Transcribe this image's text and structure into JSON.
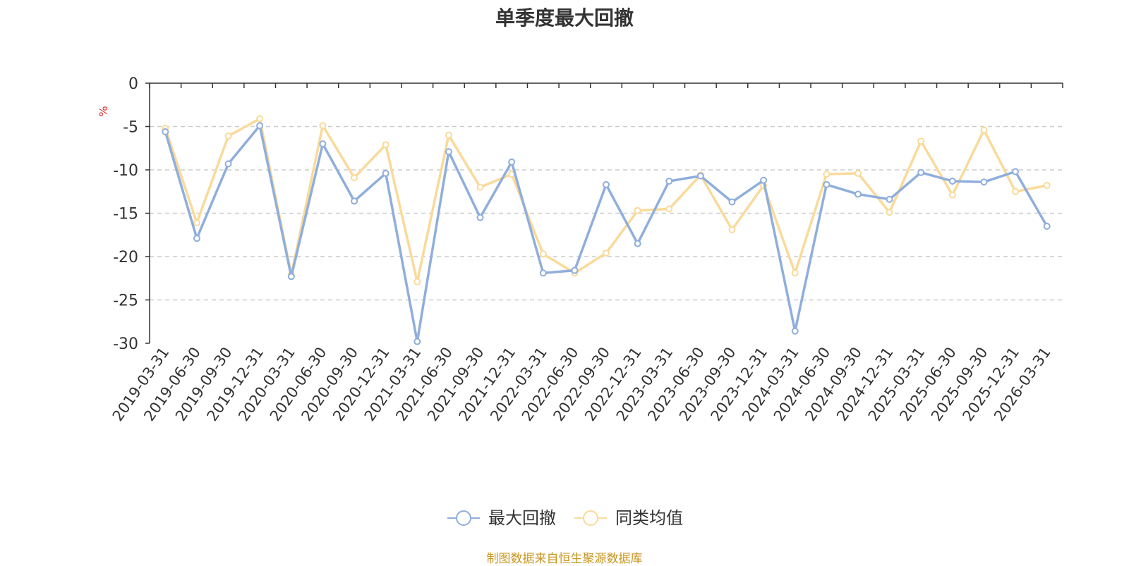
{
  "chart_data": {
    "type": "line",
    "title": "单季度最大回撤",
    "ylabel": "%",
    "xlabel": "",
    "ylim": [
      -30,
      0
    ],
    "yticks": [
      0,
      -5,
      -10,
      -15,
      -20,
      -25,
      -30
    ],
    "grid": true,
    "legend_position": "bottom",
    "categories": [
      "2019-03-31",
      "2019-06-30",
      "2019-09-30",
      "2019-12-31",
      "2020-03-31",
      "2020-06-30",
      "2020-09-30",
      "2020-12-31",
      "2021-03-31",
      "2021-06-30",
      "2021-09-30",
      "2021-12-31",
      "2022-03-31",
      "2022-06-30",
      "2022-09-30",
      "2022-12-31",
      "2023-03-31",
      "2023-06-30",
      "2023-09-30",
      "2023-12-31",
      "2024-03-31",
      "2024-06-30",
      "2024-09-30",
      "2024-12-31",
      "2025-03-31",
      "2025-06-30",
      "2025-09-30",
      "2025-12-31",
      "2026-03-31"
    ],
    "series": [
      {
        "name": "最大回撤",
        "color": "#8FAEDC",
        "values": [
          -5.6,
          -17.9,
          -9.3,
          -4.9,
          -22.3,
          -7.0,
          -13.6,
          -10.4,
          -29.8,
          -7.9,
          -15.5,
          -9.1,
          -21.9,
          -21.6,
          -11.7,
          -18.5,
          -11.3,
          -10.7,
          -13.7,
          -11.2,
          -28.6,
          -11.7,
          -12.8,
          -13.4,
          -10.3,
          -11.3,
          -11.4,
          -10.2,
          -16.5
        ]
      },
      {
        "name": "同类均值",
        "color": "#F9DA9A",
        "values": [
          -5.2,
          -16.1,
          -6.1,
          -4.1,
          -22.1,
          -4.9,
          -10.9,
          -7.1,
          -22.9,
          -6.0,
          -12.0,
          -10.5,
          -19.7,
          -21.9,
          -19.6,
          -14.7,
          -14.5,
          -10.6,
          -16.9,
          -11.8,
          -21.9,
          -10.5,
          -10.4,
          -14.9,
          -6.7,
          -12.9,
          -5.4,
          -12.5,
          -11.8
        ]
      }
    ]
  },
  "source_note": "制图数据来自恒生聚源数据库",
  "colors": {
    "axis": "#333333",
    "grid": "#cccccc",
    "ylabel": "#e03030",
    "source": "#C8961E"
  }
}
